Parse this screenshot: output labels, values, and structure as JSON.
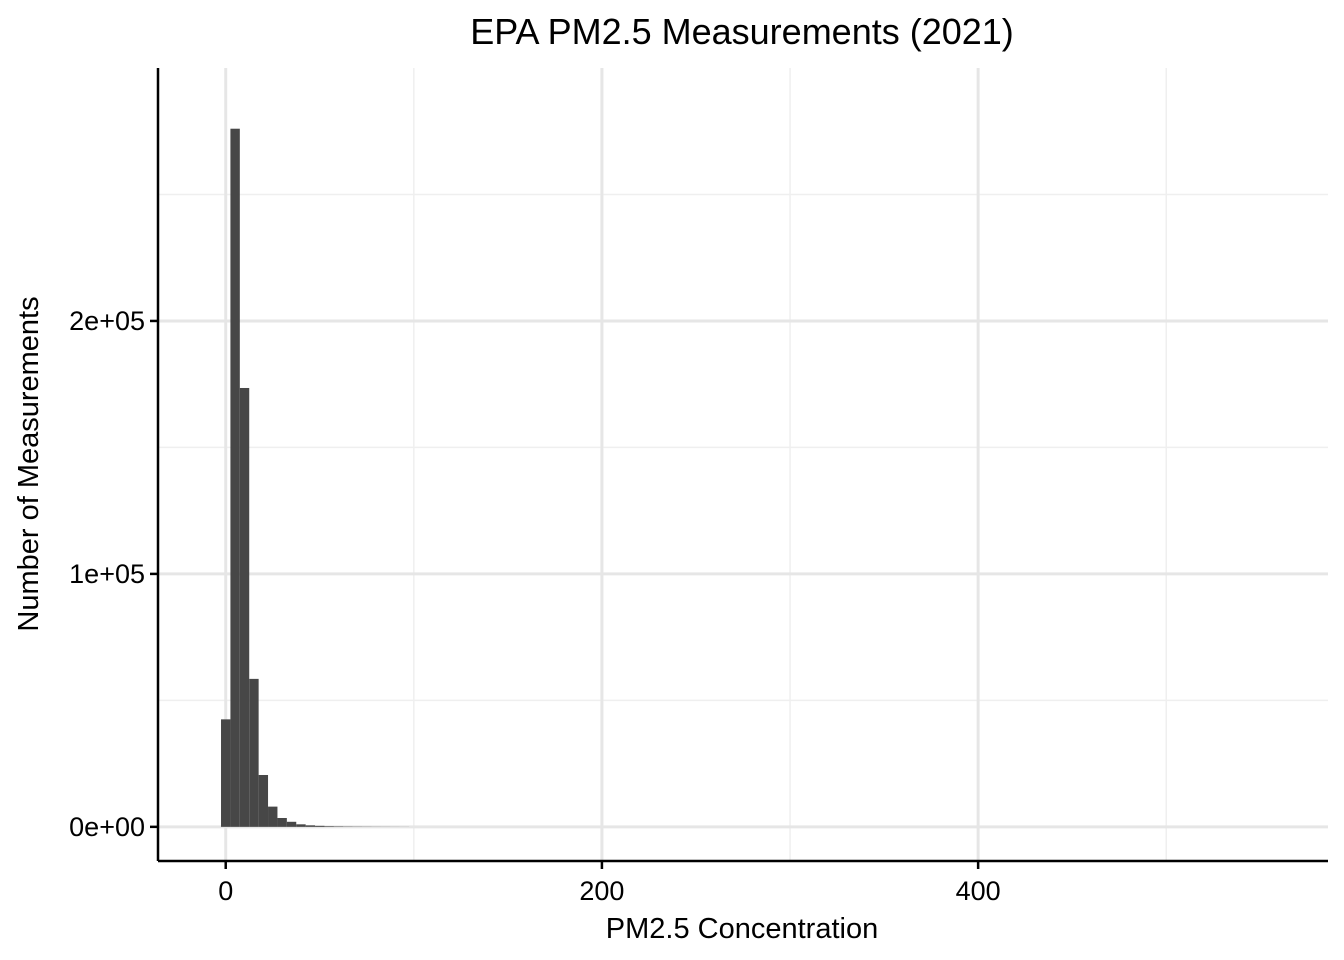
{
  "chart_data": {
    "type": "histogram",
    "title": "EPA PM2.5 Measurements (2021)",
    "xlabel": "PM2.5 Concentration",
    "ylabel": "Number of Measurements",
    "xlim": [
      -36,
      586
    ],
    "ylim": [
      -13500,
      300000
    ],
    "x_major_ticks": [
      0,
      200,
      400
    ],
    "x_tick_labels": [
      "0",
      "200",
      "400"
    ],
    "y_major_ticks": [
      0,
      100000,
      200000
    ],
    "y_tick_labels": [
      "0e+00",
      "1e+05",
      "2e+05"
    ],
    "x_minor_ticks": [
      100,
      300,
      500
    ],
    "y_minor_ticks": [
      50000,
      150000,
      250000
    ],
    "grid": true,
    "bin_width": 5,
    "bins": [
      {
        "x0": -2.5,
        "x1": 2.5,
        "count": 42500
      },
      {
        "x0": 2.5,
        "x1": 7.5,
        "count": 276000
      },
      {
        "x0": 7.5,
        "x1": 12.5,
        "count": 173500
      },
      {
        "x0": 12.5,
        "x1": 17.5,
        "count": 58500
      },
      {
        "x0": 17.5,
        "x1": 22.5,
        "count": 20500
      },
      {
        "x0": 22.5,
        "x1": 27.5,
        "count": 8000
      },
      {
        "x0": 27.5,
        "x1": 32.5,
        "count": 3500
      },
      {
        "x0": 32.5,
        "x1": 37.5,
        "count": 2000
      },
      {
        "x0": 37.5,
        "x1": 42.5,
        "count": 1000
      },
      {
        "x0": 42.5,
        "x1": 47.5,
        "count": 600
      },
      {
        "x0": 47.5,
        "x1": 52.5,
        "count": 400
      },
      {
        "x0": 52.5,
        "x1": 57.5,
        "count": 250
      },
      {
        "x0": 57.5,
        "x1": 62.5,
        "count": 180
      },
      {
        "x0": 62.5,
        "x1": 67.5,
        "count": 130
      },
      {
        "x0": 67.5,
        "x1": 72.5,
        "count": 100
      },
      {
        "x0": 72.5,
        "x1": 77.5,
        "count": 80
      },
      {
        "x0": 77.5,
        "x1": 82.5,
        "count": 60
      },
      {
        "x0": 82.5,
        "x1": 87.5,
        "count": 50
      },
      {
        "x0": 87.5,
        "x1": 92.5,
        "count": 40
      },
      {
        "x0": 92.5,
        "x1": 97.5,
        "count": 30
      }
    ],
    "colors": {
      "bar": "#474747",
      "grid_major": "#e6e6e6",
      "grid_minor": "#efefef",
      "axis": "#000000"
    }
  }
}
